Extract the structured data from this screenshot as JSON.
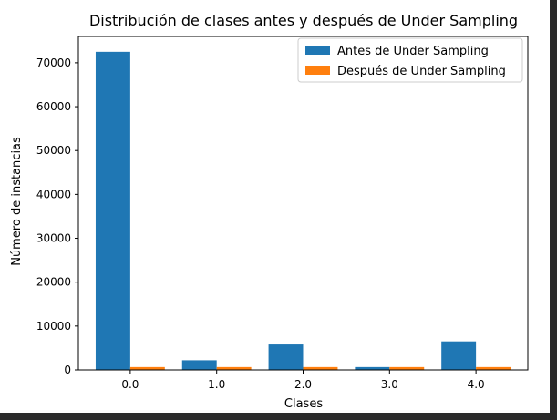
{
  "chart_data": {
    "type": "bar",
    "title": "Distribución de clases antes y después de Under Sampling",
    "xlabel": "Clases",
    "ylabel": "Número de instancias",
    "categories": [
      "0.0",
      "1.0",
      "2.0",
      "3.0",
      "4.0"
    ],
    "ylim": [
      0,
      76000
    ],
    "yticks": [
      0,
      10000,
      20000,
      30000,
      40000,
      50000,
      60000,
      70000
    ],
    "ytick_labels": [
      "0",
      "10000",
      "20000",
      "30000",
      "40000",
      "50000",
      "60000",
      "70000"
    ],
    "grid": false,
    "legend_position": "top-right",
    "series": [
      {
        "name": "Antes de Under Sampling",
        "color": "#1f77b4",
        "values": [
          72500,
          2200,
          5800,
          650,
          6500
        ]
      },
      {
        "name": "Después de Under Sampling",
        "color": "#ff7f0e",
        "values": [
          650,
          650,
          650,
          650,
          650
        ]
      }
    ]
  }
}
